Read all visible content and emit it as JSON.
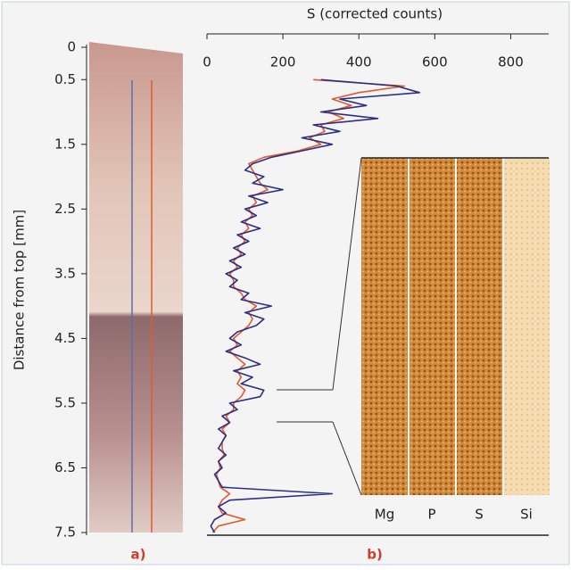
{
  "chart_data": {
    "type": "line",
    "orientation": "vertical",
    "title": "S (corrected counts)",
    "ylabel": "Distance from top [mm]",
    "panel_labels": [
      "a)",
      "b)"
    ],
    "map_labels": [
      "Mg",
      "P",
      "S",
      "Si"
    ],
    "xlim": [
      0,
      900
    ],
    "xticks": [
      0,
      200,
      400,
      600,
      800
    ],
    "ylim": [
      0,
      7.5
    ],
    "yticks": [
      0,
      0.5,
      1.5,
      2.5,
      3.5,
      4.5,
      5.5,
      6.5,
      7.5
    ],
    "y_inverted": true,
    "y": [
      0.5,
      0.6,
      0.7,
      0.8,
      0.9,
      1.0,
      1.1,
      1.2,
      1.3,
      1.4,
      1.5,
      1.6,
      1.7,
      1.8,
      1.9,
      2.0,
      2.1,
      2.2,
      2.3,
      2.4,
      2.5,
      2.6,
      2.7,
      2.8,
      2.9,
      3.0,
      3.1,
      3.2,
      3.3,
      3.4,
      3.5,
      3.6,
      3.7,
      3.8,
      3.9,
      4.0,
      4.1,
      4.2,
      4.3,
      4.4,
      4.5,
      4.6,
      4.7,
      4.8,
      4.9,
      5.0,
      5.1,
      5.2,
      5.3,
      5.4,
      5.5,
      5.6,
      5.7,
      5.8,
      5.9,
      6.0,
      6.1,
      6.2,
      6.3,
      6.4,
      6.5,
      6.6,
      6.7,
      6.8,
      6.9,
      7.0,
      7.1,
      7.2,
      7.3,
      7.4,
      7.5
    ],
    "series": [
      {
        "color": "#2c2f85",
        "values": [
          300,
          500,
          560,
          350,
          420,
          300,
          450,
          280,
          350,
          250,
          330,
          250,
          170,
          120,
          100,
          150,
          120,
          200,
          110,
          160,
          100,
          130,
          90,
          140,
          80,
          110,
          70,
          100,
          60,
          90,
          50,
          80,
          60,
          110,
          90,
          170,
          100,
          150,
          130,
          80,
          60,
          90,
          50,
          100,
          140,
          70,
          120,
          90,
          150,
          140,
          60,
          80,
          40,
          60,
          30,
          50,
          40,
          30,
          50,
          30,
          40,
          20,
          30,
          40,
          330,
          60,
          30,
          50,
          20,
          10,
          20
        ]
      },
      {
        "color": "#e05a2a",
        "values": [
          280,
          520,
          400,
          330,
          380,
          320,
          360,
          300,
          310,
          270,
          300,
          240,
          150,
          110,
          120,
          130,
          140,
          160,
          120,
          130,
          110,
          120,
          100,
          110,
          90,
          100,
          80,
          90,
          70,
          80,
          60,
          70,
          70,
          90,
          100,
          130,
          110,
          120,
          110,
          90,
          70,
          80,
          60,
          80,
          100,
          80,
          90,
          80,
          100,
          90,
          70,
          70,
          50,
          60,
          40,
          50,
          40,
          40,
          45,
          30,
          35,
          25,
          30,
          35,
          60,
          40,
          30,
          40,
          100,
          30,
          15
        ]
      }
    ]
  }
}
